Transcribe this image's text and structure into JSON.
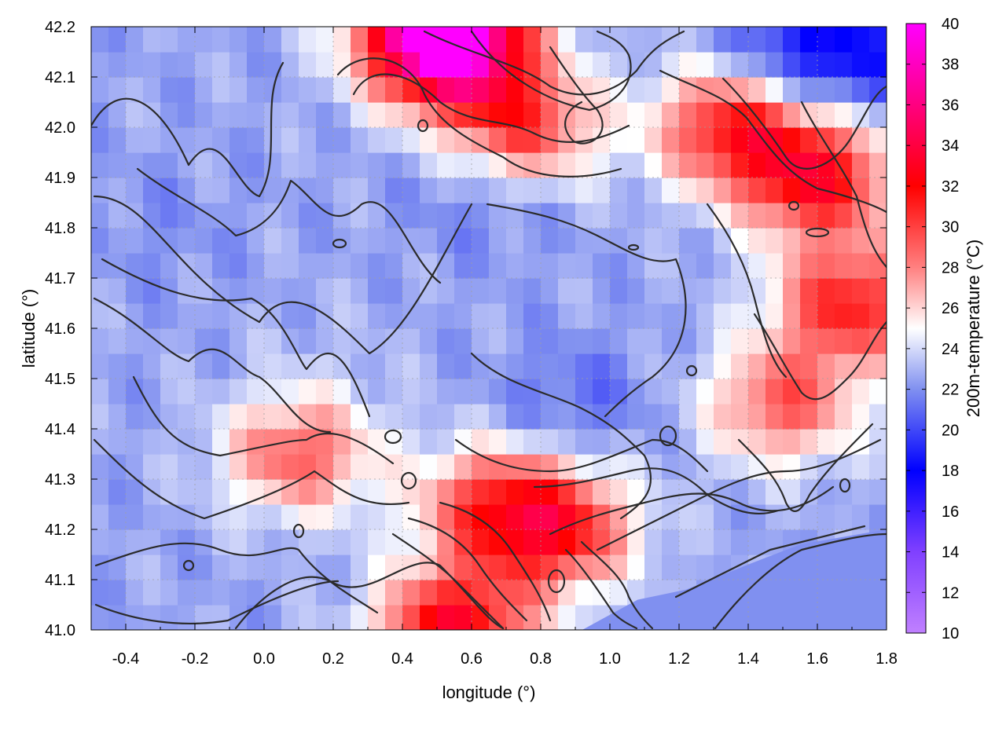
{
  "chart_data": {
    "type": "heatmap",
    "title": "",
    "xlabel": "longitude (°)",
    "ylabel": "latitude (°)",
    "colorbar_label": "200m-temperature (°C)",
    "xlim": [
      -0.5,
      1.8
    ],
    "ylim": [
      41.0,
      42.2
    ],
    "x_ticks": [
      "-0.4",
      "-0.2",
      "0.0",
      "0.2",
      "0.4",
      "0.6",
      "0.8",
      "1.0",
      "1.2",
      "1.4",
      "1.6",
      "1.8"
    ],
    "y_ticks": [
      "41.0",
      "41.1",
      "41.2",
      "41.3",
      "41.4",
      "41.5",
      "41.6",
      "41.7",
      "41.8",
      "41.9",
      "42.0",
      "42.1",
      "42.2"
    ],
    "colorbar_range": [
      10,
      40
    ],
    "colorbar_ticks": [
      "10",
      "12",
      "14",
      "16",
      "18",
      "20",
      "22",
      "24",
      "26",
      "28",
      "30",
      "32",
      "34",
      "36",
      "38",
      "40"
    ],
    "colormap_stops": [
      {
        "value": 10,
        "color": "#c080ff"
      },
      {
        "value": 14,
        "color": "#8040ff"
      },
      {
        "value": 18,
        "color": "#0000ff"
      },
      {
        "value": 22,
        "color": "#8090f0"
      },
      {
        "value": 25,
        "color": "#ffffff"
      },
      {
        "value": 28,
        "color": "#ff8080"
      },
      {
        "value": 32,
        "color": "#ff0000"
      },
      {
        "value": 36,
        "color": "#ff0080"
      },
      {
        "value": 40,
        "color": "#ff00ff"
      }
    ],
    "grid": true,
    "contours": true,
    "sea_region_value": 22,
    "temperature_features": [
      {
        "lon": 1.6,
        "lat": 41.9,
        "value": 32
      },
      {
        "lon": 1.35,
        "lat": 42.0,
        "value": 31
      },
      {
        "lon": 1.7,
        "lat": 41.65,
        "value": 31
      },
      {
        "lon": 1.5,
        "lat": 41.45,
        "value": 29
      },
      {
        "lon": 0.85,
        "lat": 41.2,
        "value": 31
      },
      {
        "lon": 0.55,
        "lat": 41.0,
        "value": 33
      },
      {
        "lon": 0.65,
        "lat": 41.25,
        "value": 29
      },
      {
        "lon": 0.1,
        "lat": 41.35,
        "value": 29
      },
      {
        "lon": 0.75,
        "lat": 42.0,
        "value": 30
      },
      {
        "lon": 0.55,
        "lat": 42.15,
        "value": 32
      },
      {
        "lon": 0.5,
        "lat": 42.2,
        "value": 36
      },
      {
        "lon": -0.3,
        "lat": 41.8,
        "value": 22
      },
      {
        "lon": 0.2,
        "lat": 41.55,
        "value": 23
      },
      {
        "lon": 0.9,
        "lat": 41.45,
        "value": 21
      },
      {
        "lon": 1.55,
        "lat": 42.15,
        "value": 19
      },
      {
        "lon": 1.75,
        "lat": 42.15,
        "value": 20
      },
      {
        "lon": 0.65,
        "lat": 41.88,
        "value": 21
      }
    ]
  }
}
